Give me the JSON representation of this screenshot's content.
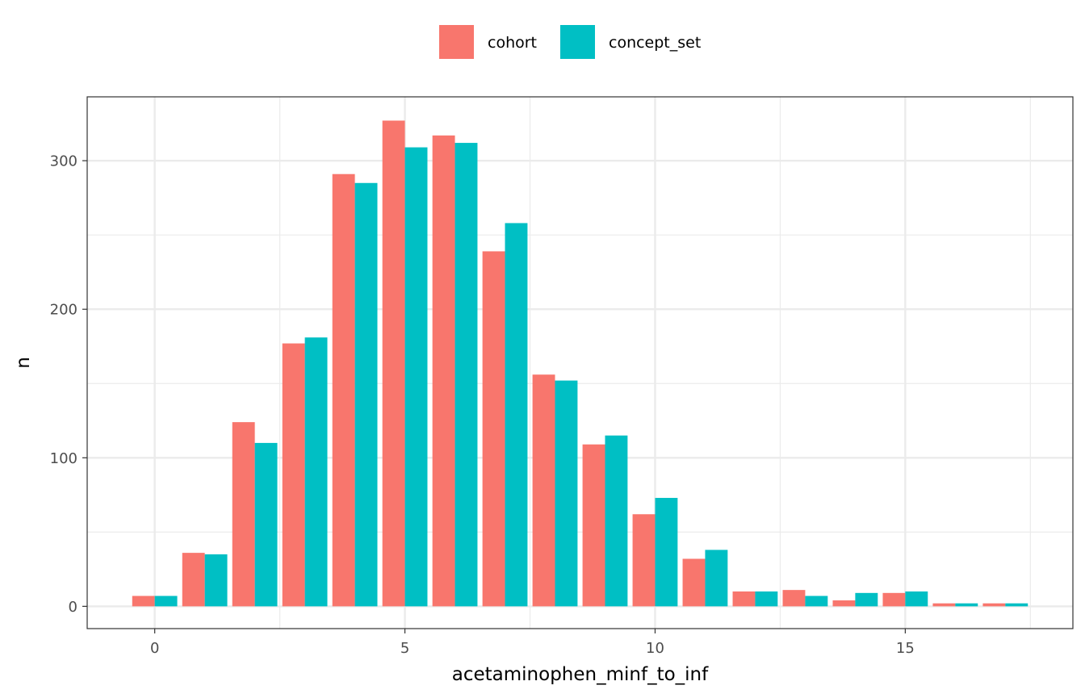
{
  "chart_data": {
    "type": "bar",
    "xlabel": "acetaminophen_minf_to_inf",
    "ylabel": "n",
    "x": [
      0,
      1,
      2,
      3,
      4,
      5,
      6,
      7,
      8,
      9,
      10,
      11,
      12,
      13,
      14,
      15,
      16,
      17
    ],
    "xlim": [
      -1.35,
      18.35
    ],
    "ylim": [
      -15,
      343
    ],
    "x_ticks": [
      0,
      5,
      10,
      15
    ],
    "y_ticks": [
      0,
      100,
      200,
      300
    ],
    "grid": true,
    "legend_position": "top",
    "series": [
      {
        "name": "cohort",
        "color": "#F8766D",
        "values": [
          7,
          36,
          124,
          177,
          291,
          327,
          317,
          239,
          156,
          109,
          62,
          32,
          10,
          11,
          4,
          9,
          2,
          2
        ]
      },
      {
        "name": "concept_set",
        "color": "#00BFC4",
        "values": [
          7,
          35,
          110,
          181,
          285,
          309,
          312,
          258,
          152,
          115,
          73,
          38,
          10,
          7,
          9,
          10,
          2,
          2
        ]
      }
    ]
  }
}
